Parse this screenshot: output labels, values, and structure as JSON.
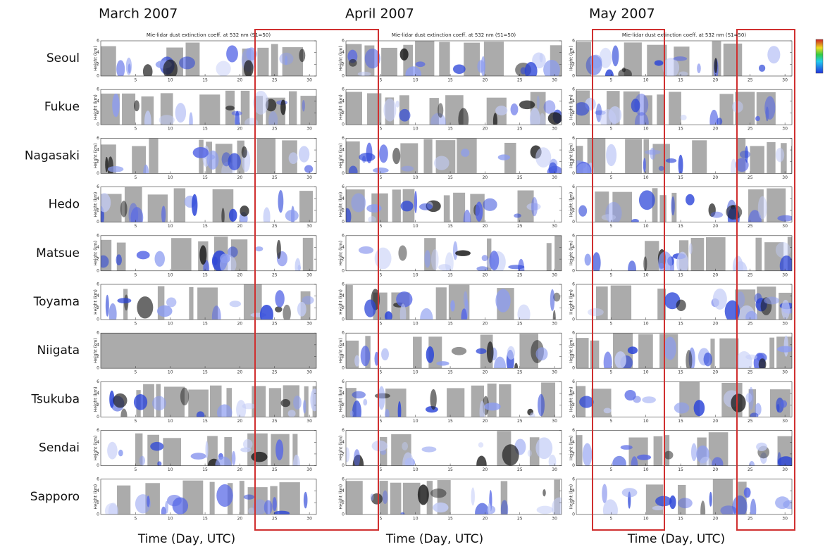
{
  "columns": [
    {
      "title": "March 2007",
      "panel_title": "Mie-lidar dust extinction coeff. at 532 nm (S1=50)",
      "x_label": "Time (Day, UTC)"
    },
    {
      "title": "April 2007",
      "panel_title": "Mie-lidar dust extinction coeff. at 532 nm (S1=50)",
      "x_label": "Time (Day, UTC)"
    },
    {
      "title": "May 2007",
      "panel_title": "Mie-lidar dust extinction coeff. at 532 nm (S1=50)",
      "x_label": "Time (Day, UTC)"
    }
  ],
  "stations": [
    "Seoul",
    "Fukue",
    "Nagasaki",
    "Hedo",
    "Matsue",
    "Toyama",
    "Niigata",
    "Tsukuba",
    "Sendai",
    "Sapporo"
  ],
  "axes": {
    "x_ticks": [
      5,
      10,
      15,
      20,
      25,
      30
    ],
    "y_ticks": [
      0,
      2,
      4,
      6
    ],
    "y_label": "Height (km)"
  }
}
